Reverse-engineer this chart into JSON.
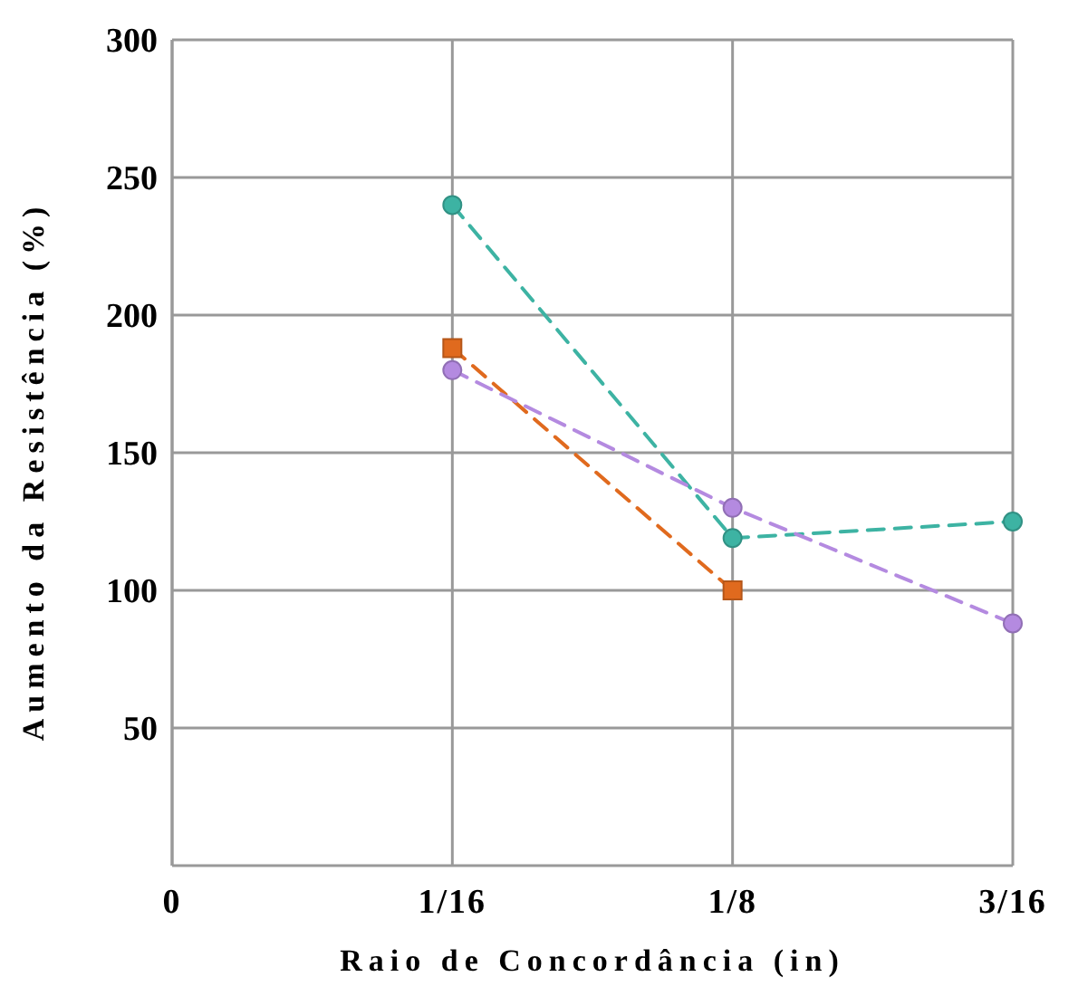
{
  "chart_data": {
    "type": "line",
    "xlabel": "Raio de Concordância (in)",
    "ylabel": "Aumento da Resistência (%)",
    "x": [
      0.0625,
      0.125,
      0.1875
    ],
    "series": [
      {
        "color": "#3db3a3",
        "marker": "circle",
        "values": [
          240,
          119,
          125
        ]
      },
      {
        "color": "#e06a1e",
        "marker": "square",
        "values": [
          188,
          100,
          null
        ]
      },
      {
        "color": "#b48ae0",
        "marker": "circle",
        "values": [
          180,
          130,
          88
        ]
      }
    ],
    "xlim": [
      0,
      0.1875
    ],
    "xticks": [
      {
        "value": 0,
        "label": "0"
      },
      {
        "value": 0.0625,
        "label": "1/16"
      },
      {
        "value": 0.125,
        "label": "1/8"
      },
      {
        "value": 0.1875,
        "label": "3/16"
      }
    ],
    "ylim": [
      0,
      300
    ],
    "yticks": [
      50,
      100,
      150,
      200,
      250,
      300
    ],
    "grid": true,
    "line_style": "dashed"
  }
}
